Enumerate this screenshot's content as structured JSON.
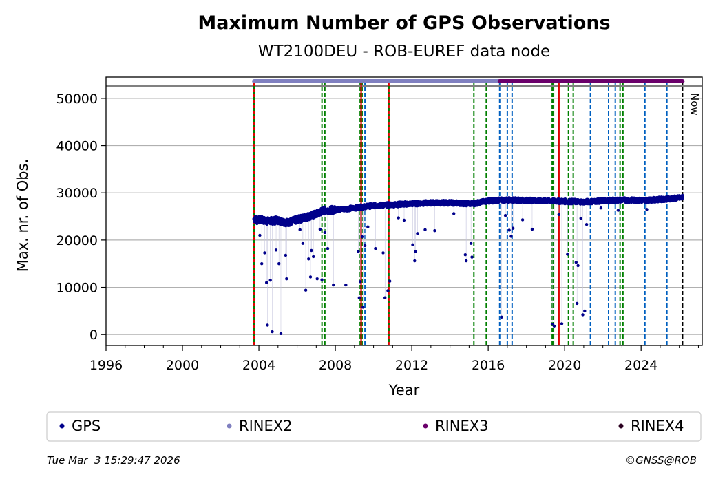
{
  "chart_data": {
    "type": "scatter",
    "title": "Maximum Number of GPS Observations",
    "subtitle": "WT2100DEU - ROB-EUREF data node",
    "xlabel": "Year",
    "ylabel": "Max. nr. of Obs.",
    "xlim": [
      1996,
      2027.2
    ],
    "ylim": [
      -2300,
      54500
    ],
    "x_ticks": [
      1996,
      2000,
      2004,
      2008,
      2012,
      2016,
      2020,
      2024
    ],
    "y_ticks": [
      0,
      10000,
      20000,
      30000,
      40000,
      50000
    ],
    "grid": "horizontal",
    "now_label": "Now",
    "now_x": 2026.17,
    "series_color": "#00008b",
    "baseline": [
      [
        2003.75,
        24500
      ],
      [
        2004.5,
        24000
      ],
      [
        2005.0,
        24200
      ],
      [
        2005.5,
        23700
      ],
      [
        2006.0,
        24300
      ],
      [
        2006.5,
        24900
      ],
      [
        2007.0,
        25500
      ],
      [
        2007.4,
        26300
      ],
      [
        2008.0,
        26400
      ],
      [
        2009.0,
        26800
      ],
      [
        2010.0,
        27300
      ],
      [
        2011.0,
        27500
      ],
      [
        2012.0,
        27700
      ],
      [
        2013.0,
        27900
      ],
      [
        2014.0,
        27900
      ],
      [
        2015.2,
        27700
      ],
      [
        2016.0,
        28300
      ],
      [
        2017.0,
        28500
      ],
      [
        2018.0,
        28400
      ],
      [
        2019.0,
        28300
      ],
      [
        2020.0,
        28200
      ],
      [
        2021.0,
        28100
      ],
      [
        2022.0,
        28300
      ],
      [
        2023.0,
        28500
      ],
      [
        2024.0,
        28400
      ],
      [
        2025.0,
        28600
      ],
      [
        2026.17,
        29000
      ]
    ],
    "outliers": [
      [
        2003.9,
        23500
      ],
      [
        2004.05,
        21000
      ],
      [
        2004.15,
        15000
      ],
      [
        2004.3,
        17300
      ],
      [
        2004.4,
        11000
      ],
      [
        2004.45,
        2000
      ],
      [
        2004.6,
        11500
      ],
      [
        2004.7,
        600
      ],
      [
        2004.9,
        17900
      ],
      [
        2005.05,
        15000
      ],
      [
        2005.15,
        200
      ],
      [
        2005.4,
        16800
      ],
      [
        2005.45,
        11800
      ],
      [
        2006.15,
        22200
      ],
      [
        2006.3,
        19300
      ],
      [
        2006.45,
        9400
      ],
      [
        2006.6,
        16000
      ],
      [
        2006.7,
        12200
      ],
      [
        2006.75,
        17800
      ],
      [
        2006.85,
        16500
      ],
      [
        2007.05,
        11800
      ],
      [
        2007.2,
        22300
      ],
      [
        2007.3,
        11600
      ],
      [
        2007.45,
        21600
      ],
      [
        2007.6,
        18200
      ],
      [
        2007.9,
        10500
      ],
      [
        2008.55,
        10500
      ],
      [
        2009.2,
        17600
      ],
      [
        2009.25,
        7800
      ],
      [
        2009.3,
        11200
      ],
      [
        2009.4,
        20700
      ],
      [
        2009.45,
        5800
      ],
      [
        2009.55,
        18800
      ],
      [
        2009.7,
        22800
      ],
      [
        2010.1,
        18200
      ],
      [
        2010.5,
        17300
      ],
      [
        2010.6,
        7800
      ],
      [
        2010.75,
        9300
      ],
      [
        2010.85,
        11300
      ],
      [
        2011.3,
        24700
      ],
      [
        2011.6,
        24200
      ],
      [
        2012.05,
        19000
      ],
      [
        2012.15,
        15600
      ],
      [
        2012.2,
        17600
      ],
      [
        2012.3,
        21400
      ],
      [
        2012.7,
        22200
      ],
      [
        2013.2,
        22000
      ],
      [
        2014.2,
        25600
      ],
      [
        2014.8,
        16900
      ],
      [
        2014.85,
        15600
      ],
      [
        2015.1,
        19300
      ],
      [
        2015.15,
        16400
      ],
      [
        2016.7,
        3700
      ],
      [
        2016.9,
        25200
      ],
      [
        2017.1,
        22100
      ],
      [
        2017.2,
        20800
      ],
      [
        2017.3,
        22500
      ],
      [
        2017.8,
        24300
      ],
      [
        2018.3,
        22300
      ],
      [
        2019.35,
        2200
      ],
      [
        2019.45,
        1800
      ],
      [
        2019.7,
        25400
      ],
      [
        2019.85,
        2300
      ],
      [
        2020.15,
        17000
      ],
      [
        2020.6,
        15300
      ],
      [
        2020.65,
        6600
      ],
      [
        2020.7,
        14600
      ],
      [
        2020.85,
        24600
      ],
      [
        2020.95,
        4200
      ],
      [
        2021.05,
        5000
      ],
      [
        2021.15,
        23300
      ],
      [
        2021.9,
        26800
      ],
      [
        2022.8,
        26300
      ],
      [
        2024.3,
        26500
      ]
    ],
    "rinex_bars": [
      {
        "name": "RINEX2",
        "from": 2003.75,
        "to": 2016.6,
        "color": "#8080c0"
      },
      {
        "name": "RINEX3",
        "from": 2016.6,
        "to": 2026.17,
        "color": "#6b006b"
      }
    ],
    "events_green": [
      2007.3,
      2007.45,
      2009.3,
      2009.4,
      2015.25,
      2015.9,
      2019.35,
      2019.42,
      2020.2,
      2020.45,
      2022.9,
      2023.05
    ],
    "events_blue": [
      2009.55,
      2016.6,
      2017.0,
      2017.25,
      2021.35,
      2022.3,
      2022.65,
      2024.2,
      2025.35
    ],
    "events_red": [
      2003.75,
      2009.35,
      2010.8,
      2019.7
    ],
    "events_redgreen": [
      2003.75,
      2010.8
    ],
    "events_black": [
      2026.17
    ]
  },
  "legend": {
    "items": [
      {
        "label": "GPS",
        "color": "#00008b"
      },
      {
        "label": "RINEX2",
        "color": "#8080c0"
      },
      {
        "label": "RINEX3",
        "color": "#6b006b"
      },
      {
        "label": "RINEX4",
        "color": "#2b0020"
      }
    ]
  },
  "footer": {
    "timestamp": "Tue Mar  3 15:29:47 2026",
    "copyright": "©GNSS@ROB"
  }
}
